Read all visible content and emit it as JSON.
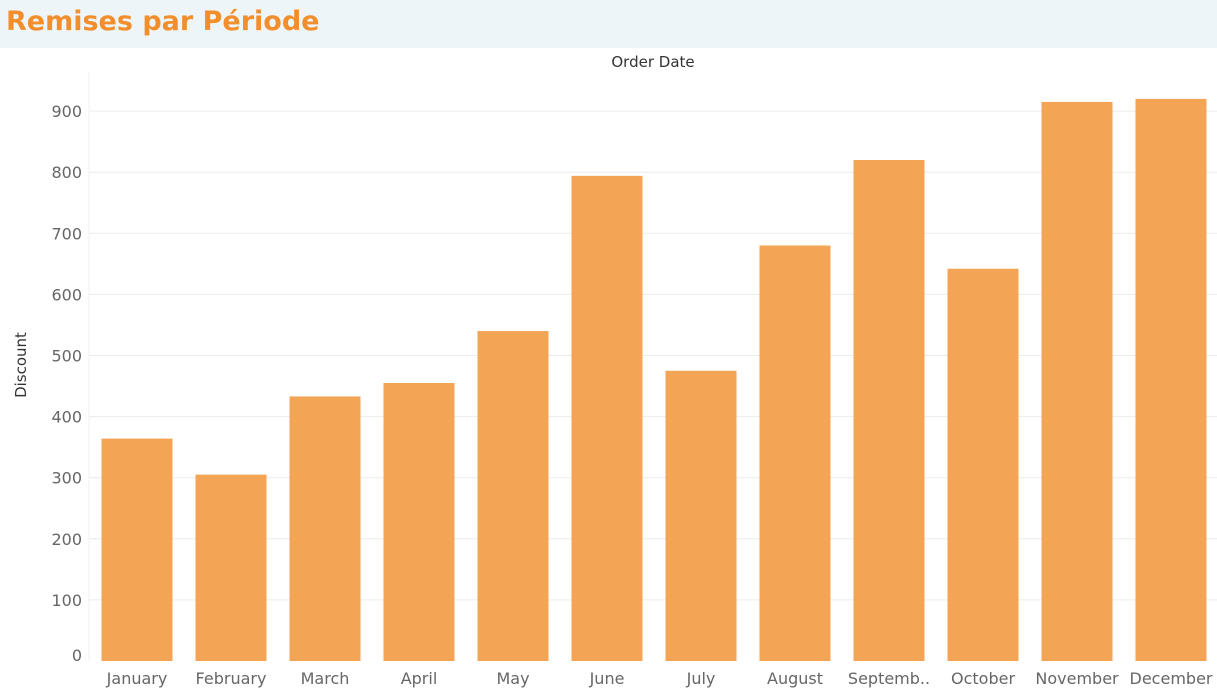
{
  "page": {
    "title": "Remises par Période"
  },
  "chart_data": {
    "type": "bar",
    "x_axis_title": "Order Date",
    "y_axis_title": "Discount",
    "categories": [
      "January",
      "February",
      "March",
      "April",
      "May",
      "June",
      "July",
      "August",
      "Septemb..",
      "October",
      "November",
      "December"
    ],
    "values": [
      364,
      305,
      433,
      455,
      540,
      794,
      475,
      680,
      820,
      642,
      915,
      920
    ],
    "ylim": [
      0,
      960
    ],
    "y_ticks": [
      0,
      100,
      200,
      300,
      400,
      500,
      600,
      700,
      800,
      900
    ],
    "grid": true,
    "legend": "none",
    "bar_color": "#f4a455",
    "title_color": "#f28e2b",
    "gridline_color": "#ececec"
  }
}
